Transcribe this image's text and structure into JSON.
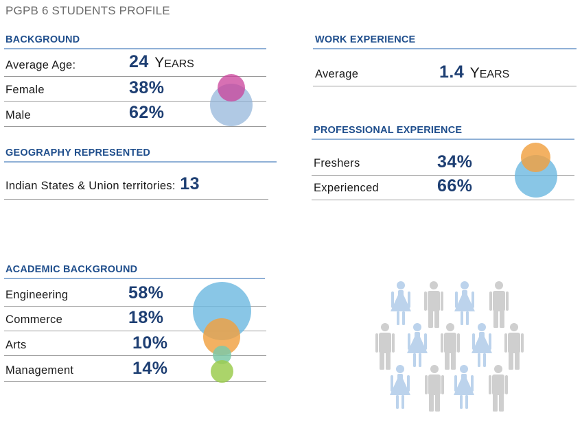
{
  "title": "PGPB 6 STUDENTS PROFILE",
  "background": {
    "heading": "BACKGROUND",
    "rows": [
      {
        "label": "Average Age:",
        "value": "24",
        "unit_cap": "Y",
        "unit_rest": "EARS"
      },
      {
        "label": "Female",
        "value": "38%"
      },
      {
        "label": "Male",
        "value": "62%"
      }
    ],
    "bubble_colors": {
      "female": "#c9409a",
      "male": "#8fb2d8"
    }
  },
  "geography": {
    "heading": "GEOGRAPHY REPRESENTED",
    "label": "Indian States & Union territories:",
    "value": "13"
  },
  "work_experience": {
    "heading": "WORK EXPERIENCE",
    "label": "Average",
    "value": "1.4",
    "unit_cap": "Y",
    "unit_rest": "EARS"
  },
  "professional_experience": {
    "heading": "PROFESSIONAL EXPERIENCE",
    "rows": [
      {
        "label": "Freshers",
        "value": "34%"
      },
      {
        "label": "Experienced",
        "value": "66%"
      }
    ],
    "bubble_colors": {
      "freshers": "#f0a040",
      "experienced": "#6bb8e0"
    }
  },
  "academic_background": {
    "heading": "ACADEMIC BACKGROUND",
    "rows": [
      {
        "label": "Engineering",
        "value": "58%"
      },
      {
        "label": "Commerce",
        "value": "18%"
      },
      {
        "label": "Arts",
        "value": "10%"
      },
      {
        "label": "Management",
        "value": "14%"
      }
    ],
    "bubble_colors": {
      "engineering": "#6bb8e0",
      "commerce": "#f0a040",
      "arts": "#7cc9a8",
      "management": "#9ccc50"
    }
  },
  "people_graphic": {
    "icon": "people-crowd-icon",
    "colors": {
      "woman": "#bcd3ec",
      "man": "#cfcfcf"
    }
  }
}
